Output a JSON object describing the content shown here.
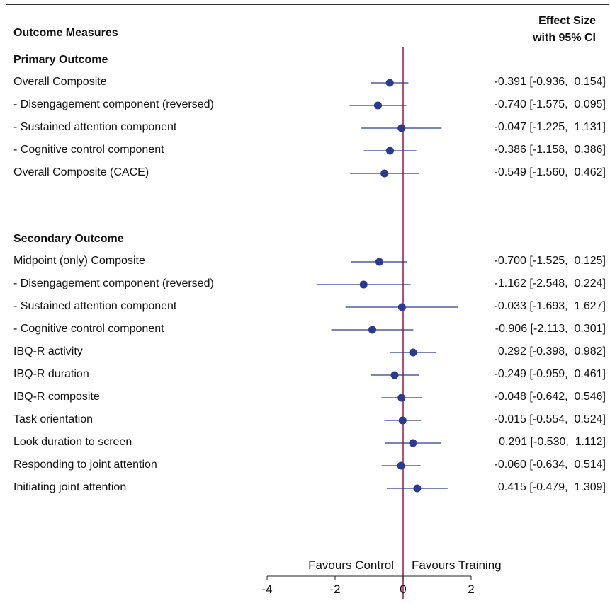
{
  "header": {
    "outcome_measures": "Outcome Measures",
    "effect_size_line1": "Effect Size",
    "effect_size_line2": "with 95% CI"
  },
  "sections": [
    {
      "title": "Primary Outcome"
    },
    {
      "title": "Secondary Outcome"
    }
  ],
  "colors": {
    "point": "#2b3990",
    "zero_line": "#a0153e",
    "axis": "#222222"
  },
  "chart_data": {
    "type": "scatter",
    "subtype": "forest-plot",
    "xlim": [
      -4,
      2
    ],
    "xticks": [
      -4,
      -2,
      0,
      2
    ],
    "xtick_labels": [
      "-4",
      "-2",
      "0",
      "2"
    ],
    "axis_label_left": "Favours Control",
    "axis_label_right": "Favours Training",
    "reference_line": 0,
    "rows": [
      {
        "section": 0,
        "label": "Overall Composite",
        "est": -0.391,
        "lo": -0.936,
        "hi": 0.154,
        "ci_text": "-0.391 [-0.936,  0.154]"
      },
      {
        "section": 0,
        "label": "- Disengagement component (reversed)",
        "est": -0.74,
        "lo": -1.575,
        "hi": 0.095,
        "ci_text": "-0.740 [-1.575,  0.095]"
      },
      {
        "section": 0,
        "label": "- Sustained attention component",
        "est": -0.047,
        "lo": -1.225,
        "hi": 1.131,
        "ci_text": "-0.047 [-1.225,  1.131]"
      },
      {
        "section": 0,
        "label": "- Cognitive control component",
        "est": -0.386,
        "lo": -1.158,
        "hi": 0.386,
        "ci_text": "-0.386 [-1.158,  0.386]"
      },
      {
        "section": 0,
        "label": "Overall Composite (CACE)",
        "est": -0.549,
        "lo": -1.56,
        "hi": 0.462,
        "ci_text": "-0.549 [-1.560,  0.462]"
      },
      {
        "section": 1,
        "label": "Midpoint (only) Composite",
        "est": -0.7,
        "lo": -1.525,
        "hi": 0.125,
        "ci_text": "-0.700 [-1.525,  0.125]"
      },
      {
        "section": 1,
        "label": "- Disengagement component (reversed)",
        "est": -1.162,
        "lo": -2.548,
        "hi": 0.224,
        "ci_text": "-1.162 [-2.548,  0.224]"
      },
      {
        "section": 1,
        "label": "- Sustained attention component",
        "est": -0.033,
        "lo": -1.693,
        "hi": 1.627,
        "ci_text": "-0.033 [-1.693,  1.627]"
      },
      {
        "section": 1,
        "label": "- Cognitive control component",
        "est": -0.906,
        "lo": -2.113,
        "hi": 0.301,
        "ci_text": "-0.906 [-2.113,  0.301]"
      },
      {
        "section": 1,
        "label": "IBQ-R activity",
        "est": 0.292,
        "lo": -0.398,
        "hi": 0.982,
        "ci_text": "0.292 [-0.398,  0.982]"
      },
      {
        "section": 1,
        "label": "IBQ-R duration",
        "est": -0.249,
        "lo": -0.959,
        "hi": 0.461,
        "ci_text": "-0.249 [-0.959,  0.461]"
      },
      {
        "section": 1,
        "label": "IBQ-R composite",
        "est": -0.048,
        "lo": -0.642,
        "hi": 0.546,
        "ci_text": "-0.048 [-0.642,  0.546]"
      },
      {
        "section": 1,
        "label": "Task orientation",
        "est": -0.015,
        "lo": -0.554,
        "hi": 0.524,
        "ci_text": "-0.015 [-0.554,  0.524]"
      },
      {
        "section": 1,
        "label": "Look duration to screen",
        "est": 0.291,
        "lo": -0.53,
        "hi": 1.112,
        "ci_text": "0.291 [-0.530,  1.112]"
      },
      {
        "section": 1,
        "label": "Responding to joint attention",
        "est": -0.06,
        "lo": -0.634,
        "hi": 0.514,
        "ci_text": "-0.060 [-0.634,  0.514]"
      },
      {
        "section": 1,
        "label": "Initiating joint attention",
        "est": 0.415,
        "lo": -0.479,
        "hi": 1.309,
        "ci_text": "0.415 [-0.479,  1.309]"
      }
    ]
  }
}
